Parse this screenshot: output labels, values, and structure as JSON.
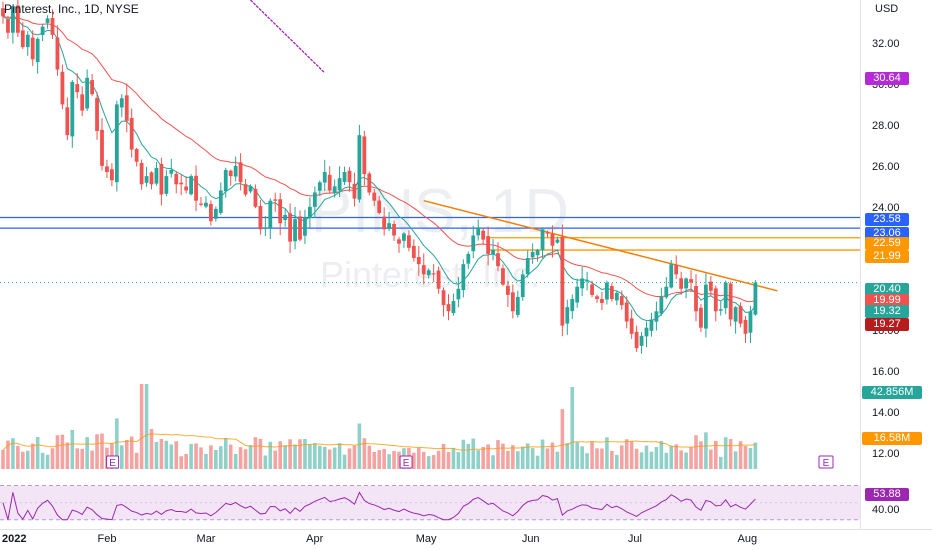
{
  "header": {
    "title": "Pinterest, Inc., 1D, NYSE"
  },
  "watermark": {
    "symbol": "PINS, 1D",
    "name": "Pinterest, Inc."
  },
  "currency": "USD",
  "colors": {
    "up": "#26a69a",
    "down": "#ef5350",
    "vol_up": "#8fd1c9",
    "vol_down": "#f5a3a1",
    "ma_fast": "#26a69a",
    "ma_slow": "#ef5350",
    "hline": "#2962ff",
    "resist": "#ff9800",
    "trend": "#f57c00",
    "purple": "#9c27b0",
    "rsi": "#9c27b0",
    "rsi_bg": "#f3e5f5",
    "volma": "#ff9800"
  },
  "price_tags": [
    {
      "value": "30.64",
      "color": "#b42ad6"
    },
    {
      "value": "23.58",
      "color": "#2962ff"
    },
    {
      "value": "23.06",
      "color": "#2962ff"
    },
    {
      "value": "22.59",
      "color": "#ff9800"
    },
    {
      "value": "21.99",
      "color": "#ff9800"
    },
    {
      "value": "20.40",
      "color": "#26a69a"
    },
    {
      "value": "19.99",
      "color": "#ef5350"
    },
    {
      "value": "19.32",
      "color": "#26a69a"
    },
    {
      "value": "19.27",
      "color": "#b71c1c"
    },
    {
      "value": "42.856M",
      "color": "#26a69a"
    },
    {
      "value": "16.58M",
      "color": "#ff9800"
    },
    {
      "value": "53.88",
      "color": "#9c27b0"
    }
  ],
  "earnings_marker": "E",
  "chart_data": [
    {
      "type": "candlestick",
      "title": "Pinterest, Inc., 1D, NYSE",
      "y_axis": {
        "unit": "USD",
        "ticks": [
          12,
          14,
          16,
          18,
          20,
          22,
          24,
          26,
          28,
          30,
          32
        ],
        "tick_labels": [
          "12.00",
          "14.00",
          "16.00",
          "18.00",
          "20.00",
          "22.00",
          "24.00",
          "26.00",
          "28.00",
          "30.00",
          "32.00"
        ],
        "range": [
          11.2,
          34.2
        ]
      },
      "x_axis": {
        "tick_labels": [
          "2022",
          "Feb",
          "Mar",
          "Apr",
          "May",
          "Jun",
          "Jul",
          "Aug"
        ],
        "tick_dates": [
          "2022-01-03",
          "2022-02-01",
          "2022-03-01",
          "2022-04-01",
          "2022-05-02",
          "2022-06-01",
          "2022-07-01",
          "2022-08-01"
        ]
      },
      "start_date": "2022-01-03",
      "end_date": "2022-07-18",
      "closes": [
        33.4,
        32.6,
        33.9,
        32.6,
        31.9,
        32.5,
        31.3,
        32.3,
        32.9,
        33.3,
        32.5,
        30.8,
        29.1,
        27.6,
        30.2,
        29.7,
        28.8,
        30.4,
        29.6,
        27.8,
        26.1,
        25.8,
        25.4,
        29.1,
        29.4,
        28.3,
        26.9,
        26.3,
        25.2,
        25.6,
        25.2,
        26.0,
        24.7,
        25.6,
        25.9,
        25.2,
        25.2,
        24.9,
        25.6,
        24.4,
        24.2,
        24.3,
        23.4,
        24.0,
        24.9,
        25.9,
        25.6,
        26.1,
        25.3,
        24.7,
        25.1,
        24.1,
        23.0,
        23.1,
        24.4,
        24.4,
        23.3,
        23.7,
        22.4,
        23.5,
        22.5,
        23.6,
        24.1,
        24.8,
        25.3,
        25.8,
        24.9,
        25.1,
        25.5,
        25.8,
        25.3,
        24.5,
        27.6,
        25.7,
        24.8,
        24.4,
        23.8,
        23.0,
        23.3,
        22.7,
        22.3,
        22.8,
        22.1,
        21.6,
        21.3,
        20.8,
        21.0,
        20.8,
        20.1,
        19.3,
        19.0,
        19.5,
        20.1,
        21.3,
        21.8,
        22.7,
        23.1,
        22.5,
        21.8,
        22.0,
        21.2,
        20.3,
        19.8,
        19.0,
        19.7,
        20.8,
        21.6,
        21.9,
        22.0,
        23.0,
        22.8,
        22.2,
        22.5,
        18.3,
        19.2,
        19.6,
        20.2,
        20.6,
        20.5,
        19.8,
        19.6,
        19.4,
        20.4,
        19.6,
        19.9,
        19.3,
        18.5,
        17.9,
        17.2,
        17.8,
        18.2,
        18.6,
        19.0,
        19.7,
        20.2,
        21.3,
        20.8,
        20.1,
        20.6,
        20.4,
        19.0,
        18.2,
        20.3,
        20.0,
        19.0,
        19.1,
        20.4,
        18.6,
        19.2,
        18.4,
        17.9,
        19.0,
        20.4
      ],
      "ma_fast_series": "green EMA",
      "ma_slow_series": "red EMA",
      "horizontal_lines": [
        23.58,
        23.06,
        22.59,
        21.99
      ],
      "trendline": {
        "from": [
          "2022-05-02",
          24.4
        ],
        "to": [
          "2022-08-10",
          20.0
        ]
      },
      "drawn_line": {
        "from": [
          "2022-03-14",
          34.2
        ],
        "to": [
          "2022-04-04",
          30.64
        ]
      },
      "last_close": 20.4
    },
    {
      "type": "bar",
      "title": "Volume",
      "last_value": "42.856M",
      "ma_last": "16.58M",
      "earnings_dates": [
        "2022-02-03",
        "2022-04-27"
      ]
    },
    {
      "type": "line",
      "title": "RSI",
      "y_ticks": [
        40,
        60
      ],
      "tick_labels": [
        "40.00",
        "60.00"
      ],
      "band": [
        30,
        70
      ],
      "last_value": "53.88"
    }
  ]
}
